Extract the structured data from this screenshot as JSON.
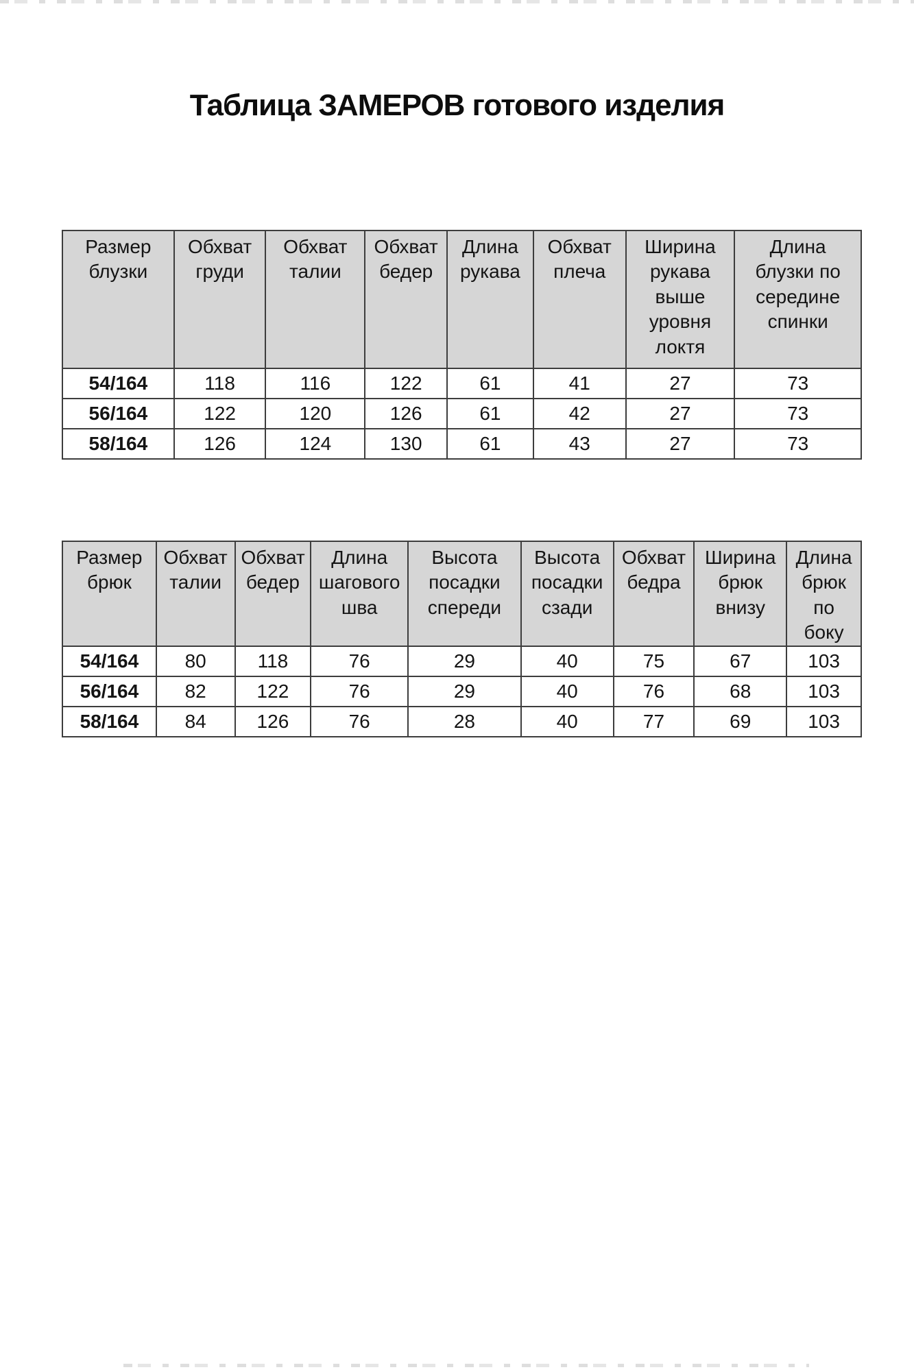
{
  "page_title": "Таблица ЗАМЕРОВ готового изделия",
  "blouse_table": {
    "headers": [
      "Размер\nблузки",
      "Обхват\nгруди",
      "Обхват\nталии",
      "Обхват\nбедер",
      "Длина\nрукава",
      "Обхват\nплеча",
      "Ширина\nрукава\nвыше\nуровня\nлоктя",
      "Длина\nблузки по\nсередине\nспинки"
    ],
    "rows": [
      {
        "size": "54/164",
        "values": [
          "118",
          "116",
          "122",
          "61",
          "41",
          "27",
          "73"
        ]
      },
      {
        "size": "56/164",
        "values": [
          "122",
          "120",
          "126",
          "61",
          "42",
          "27",
          "73"
        ]
      },
      {
        "size": "58/164",
        "values": [
          "126",
          "124",
          "130",
          "61",
          "43",
          "27",
          "73"
        ]
      }
    ]
  },
  "trousers_table": {
    "headers": [
      "Размер\nбрюк",
      "Обхват\nталии",
      "Обхват\nбедер",
      "Длина\nшагового\nшва",
      "Высота\nпосадки\nспереди",
      "Высота\nпосадки\nсзади",
      "Обхват\nбедра",
      "Ширина\nбрюк\nвнизу",
      "Длина\nбрюк\nпо\nбоку"
    ],
    "rows": [
      {
        "size": "54/164",
        "values": [
          "80",
          "118",
          "76",
          "29",
          "40",
          "75",
          "67",
          "103"
        ]
      },
      {
        "size": "56/164",
        "values": [
          "82",
          "122",
          "76",
          "29",
          "40",
          "76",
          "68",
          "103"
        ]
      },
      {
        "size": "58/164",
        "values": [
          "84",
          "126",
          "76",
          "28",
          "40",
          "77",
          "69",
          "103"
        ]
      }
    ]
  },
  "colors": {
    "header_bg": "#d6d6d6",
    "border": "#3d3d3d",
    "text": "#141414"
  }
}
